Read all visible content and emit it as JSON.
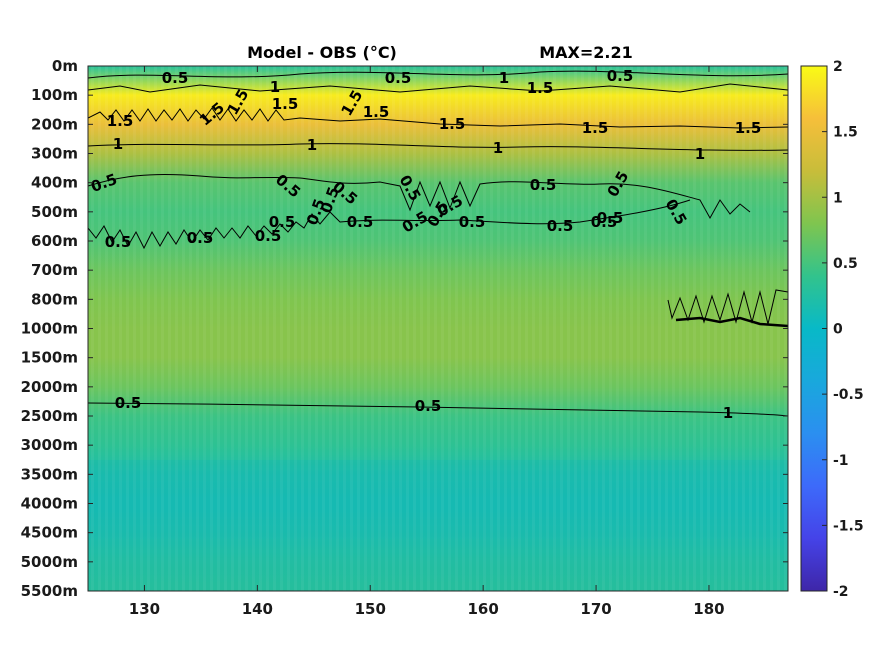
{
  "chart_data": {
    "type": "heatmap",
    "title": "Model - OBS (°C)",
    "annotation": "MAX=2.21",
    "x_ticks": [
      130,
      140,
      150,
      160,
      170,
      180
    ],
    "xlim": [
      125,
      187
    ],
    "y_ticks": [
      "0m",
      "100m",
      "200m",
      "300m",
      "400m",
      "500m",
      "600m",
      "700m",
      "800m",
      "1000m",
      "1500m",
      "2000m",
      "2500m",
      "3000m",
      "3500m",
      "4000m",
      "4500m",
      "5000m",
      "5500m"
    ],
    "colorbar_ticks": [
      2,
      1.5,
      1,
      0.5,
      0,
      -0.5,
      -1,
      -1.5,
      -2
    ],
    "clim": [
      -2,
      2
    ],
    "colormap": "parula",
    "depth_profile": [
      {
        "level": "0m",
        "value": 0.3
      },
      {
        "level": "100m",
        "value": 1.9
      },
      {
        "level": "200m",
        "value": 1.5
      },
      {
        "level": "300m",
        "value": 1.05
      },
      {
        "level": "400m",
        "value": 0.6
      },
      {
        "level": "500m",
        "value": 0.5
      },
      {
        "level": "600m",
        "value": 0.55
      },
      {
        "level": "700m",
        "value": 0.7
      },
      {
        "level": "800m",
        "value": 0.8
      },
      {
        "level": "1000m",
        "value": 0.85
      },
      {
        "level": "1500m",
        "value": 0.85
      },
      {
        "level": "2000m",
        "value": 0.7
      },
      {
        "level": "2500m",
        "value": 0.45
      },
      {
        "level": "3000m",
        "value": 0.35
      },
      {
        "level": "3500m",
        "value": 0.2
      },
      {
        "level": "4000m",
        "value": 0.15
      },
      {
        "level": "4500m",
        "value": 0.2
      },
      {
        "level": "5000m",
        "value": 0.3
      },
      {
        "level": "5500m",
        "value": 0.35
      }
    ],
    "contour_levels": [
      0.5,
      1,
      1.5
    ],
    "contour_labels": [
      "0.5",
      "0.5",
      "0.5",
      "0.5",
      "1",
      "1",
      "1.5",
      "1.5",
      "1.5",
      "1.5",
      "1.5",
      "1.5",
      "1.5",
      "1.5",
      "1.5",
      "1.5",
      "1",
      "1",
      "1",
      "1",
      "0.5",
      "0.5",
      "0.5",
      "0.5",
      "0.5",
      "0.5",
      "0.5",
      "0.5",
      "0.5",
      "0.5",
      "0.5",
      "0.5",
      "0.5",
      "0.5",
      "0.5",
      "0.5",
      "0.5",
      "0.5",
      "0.5",
      "0.5",
      "0.5",
      "0.5",
      "1"
    ]
  }
}
